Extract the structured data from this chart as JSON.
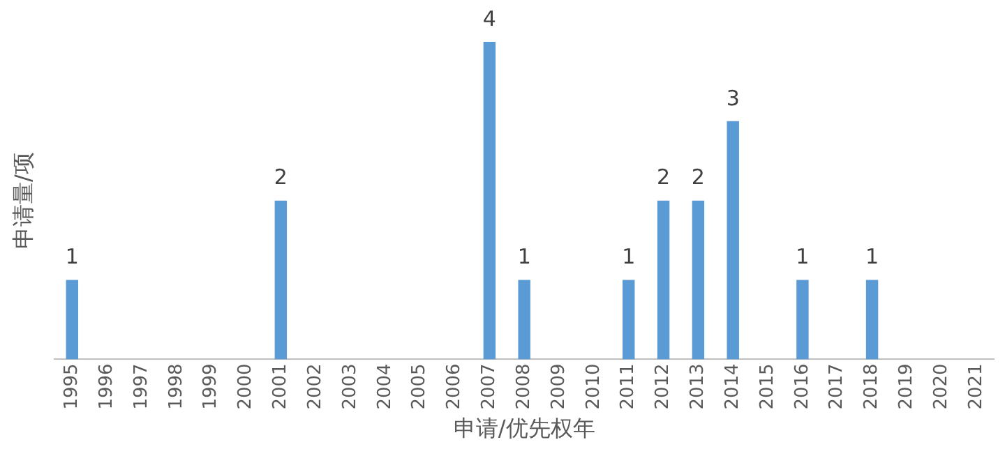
{
  "chart_data": {
    "type": "bar",
    "xlabel": "申请/优先权年",
    "ylabel": "申请量/项",
    "categories": [
      "1995",
      "1996",
      "1997",
      "1998",
      "1999",
      "2000",
      "2001",
      "2002",
      "2003",
      "2004",
      "2005",
      "2006",
      "2007",
      "2008",
      "2009",
      "2010",
      "2011",
      "2012",
      "2013",
      "2014",
      "2015",
      "2016",
      "2017",
      "2018",
      "2019",
      "2020",
      "2021"
    ],
    "values": [
      1,
      0,
      0,
      0,
      0,
      0,
      2,
      0,
      0,
      0,
      0,
      0,
      4,
      1,
      0,
      0,
      1,
      2,
      2,
      3,
      0,
      1,
      0,
      1,
      0,
      0,
      0
    ],
    "value_labels": [
      "1",
      null,
      null,
      null,
      null,
      null,
      "2",
      null,
      null,
      null,
      null,
      null,
      "4",
      "1",
      null,
      null,
      "1",
      "2",
      "2",
      "3",
      null,
      "1",
      null,
      "1",
      null,
      null,
      null
    ],
    "color": "#5b9bd5",
    "grid": false,
    "legend": false
  }
}
